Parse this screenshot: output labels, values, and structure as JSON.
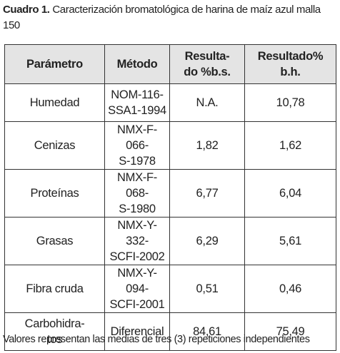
{
  "caption": {
    "label": "Cuadro 1.",
    "text": "Caracterización bromatológica de harina de maíz azul malla 150"
  },
  "table": {
    "header": [
      "Parámetro",
      "Método",
      "Resulta-\ndo %b.s.",
      "Resultado%\nb.h."
    ],
    "rows": [
      [
        "Humedad",
        "NOM-116-\nSSA1-1994",
        "N.A.",
        "10,78"
      ],
      [
        "Cenizas",
        "NMX-F-066-\nS-1978",
        "1,82",
        "1,62"
      ],
      [
        "Proteínas",
        "NMX-F-068-\nS-1980",
        "6,77",
        "6,04"
      ],
      [
        "Grasas",
        "NMX-Y-332-\nSCFI-2002",
        "6,29",
        "5,61"
      ],
      [
        "Fibra cruda",
        "NMX-Y-094-\nSCFI-2001",
        "0,51",
        "0,46"
      ],
      [
        "Carbohidra-\ntos",
        "Diferencial",
        "84,61",
        "75,49"
      ]
    ]
  },
  "footnote": "Valores representan las medias de tres (3) repeticiones independientes"
}
